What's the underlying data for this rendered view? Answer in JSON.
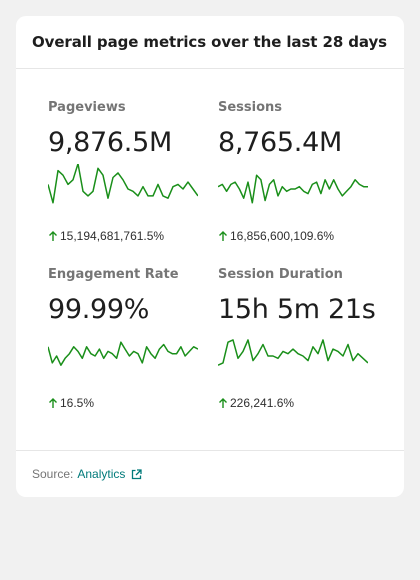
{
  "card": {
    "title": "Overall page metrics over the last 28 days"
  },
  "metrics": [
    {
      "label": "Pageviews",
      "value": "9,876.5M",
      "delta": "15,194,681,761.5%",
      "trend": [
        0.6,
        0.2,
        0.9,
        0.8,
        0.6,
        0.7,
        1.05,
        0.45,
        0.35,
        0.45,
        0.95,
        0.8,
        0.3,
        0.75,
        0.85,
        0.7,
        0.5,
        0.45,
        0.35,
        0.55,
        0.35,
        0.35,
        0.6,
        0.35,
        0.3,
        0.55,
        0.6,
        0.5,
        0.65,
        0.5,
        0.35
      ]
    },
    {
      "label": "Sessions",
      "value": "8,765.4M",
      "delta": "16,856,600,109.6%",
      "trend": [
        0.55,
        0.6,
        0.45,
        0.6,
        0.65,
        0.5,
        0.3,
        0.65,
        0.2,
        0.8,
        0.7,
        0.25,
        0.6,
        0.7,
        0.35,
        0.55,
        0.45,
        0.5,
        0.5,
        0.55,
        0.45,
        0.4,
        0.6,
        0.65,
        0.4,
        0.7,
        0.5,
        0.7,
        0.5,
        0.35,
        0.45,
        0.55,
        0.7,
        0.6,
        0.55,
        0.55
      ]
    },
    {
      "label": "Engagement Rate",
      "value": "99.99%",
      "delta": "16.5%",
      "trend": [
        0.7,
        0.35,
        0.5,
        0.3,
        0.45,
        0.55,
        0.7,
        0.6,
        0.45,
        0.7,
        0.55,
        0.5,
        0.65,
        0.45,
        0.6,
        0.55,
        0.45,
        0.8,
        0.65,
        0.5,
        0.6,
        0.55,
        0.35,
        0.7,
        0.55,
        0.45,
        0.65,
        0.75,
        0.6,
        0.55,
        0.55,
        0.7,
        0.5,
        0.6,
        0.7,
        0.65
      ]
    },
    {
      "label": "Session Duration",
      "value": "15h 5m 21s",
      "delta": "226,241.6%",
      "trend": [
        0.3,
        0.35,
        0.8,
        0.85,
        0.45,
        0.6,
        0.85,
        0.4,
        0.55,
        0.75,
        0.5,
        0.5,
        0.45,
        0.6,
        0.55,
        0.65,
        0.55,
        0.5,
        0.4,
        0.7,
        0.55,
        0.85,
        0.4,
        0.65,
        0.6,
        0.5,
        0.75,
        0.4,
        0.55,
        0.45,
        0.35
      ]
    }
  ],
  "footer": {
    "source_label": "Source:",
    "source_link": "Analytics"
  },
  "colors": {
    "spark": "#1a8f1a",
    "link": "#007a7a",
    "arrow": "#1a8f1a"
  }
}
